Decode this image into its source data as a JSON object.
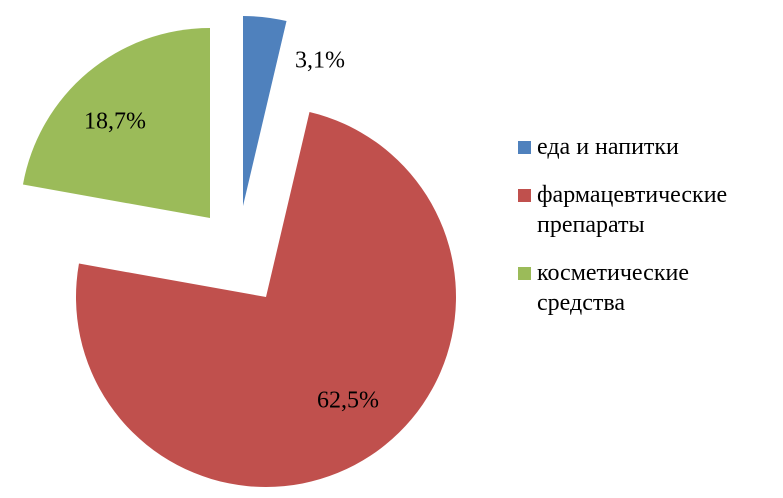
{
  "chart_data": {
    "type": "pie",
    "categories": [
      "еда и напитки",
      "фармацевтические препараты",
      "косметические средства"
    ],
    "values": [
      3.1,
      62.5,
      18.7
    ],
    "value_labels": [
      "3,1%",
      "62,5%",
      "18,7%"
    ],
    "colors": [
      "#4f81bd",
      "#c0504d",
      "#9bbb59"
    ],
    "legend": "right"
  }
}
